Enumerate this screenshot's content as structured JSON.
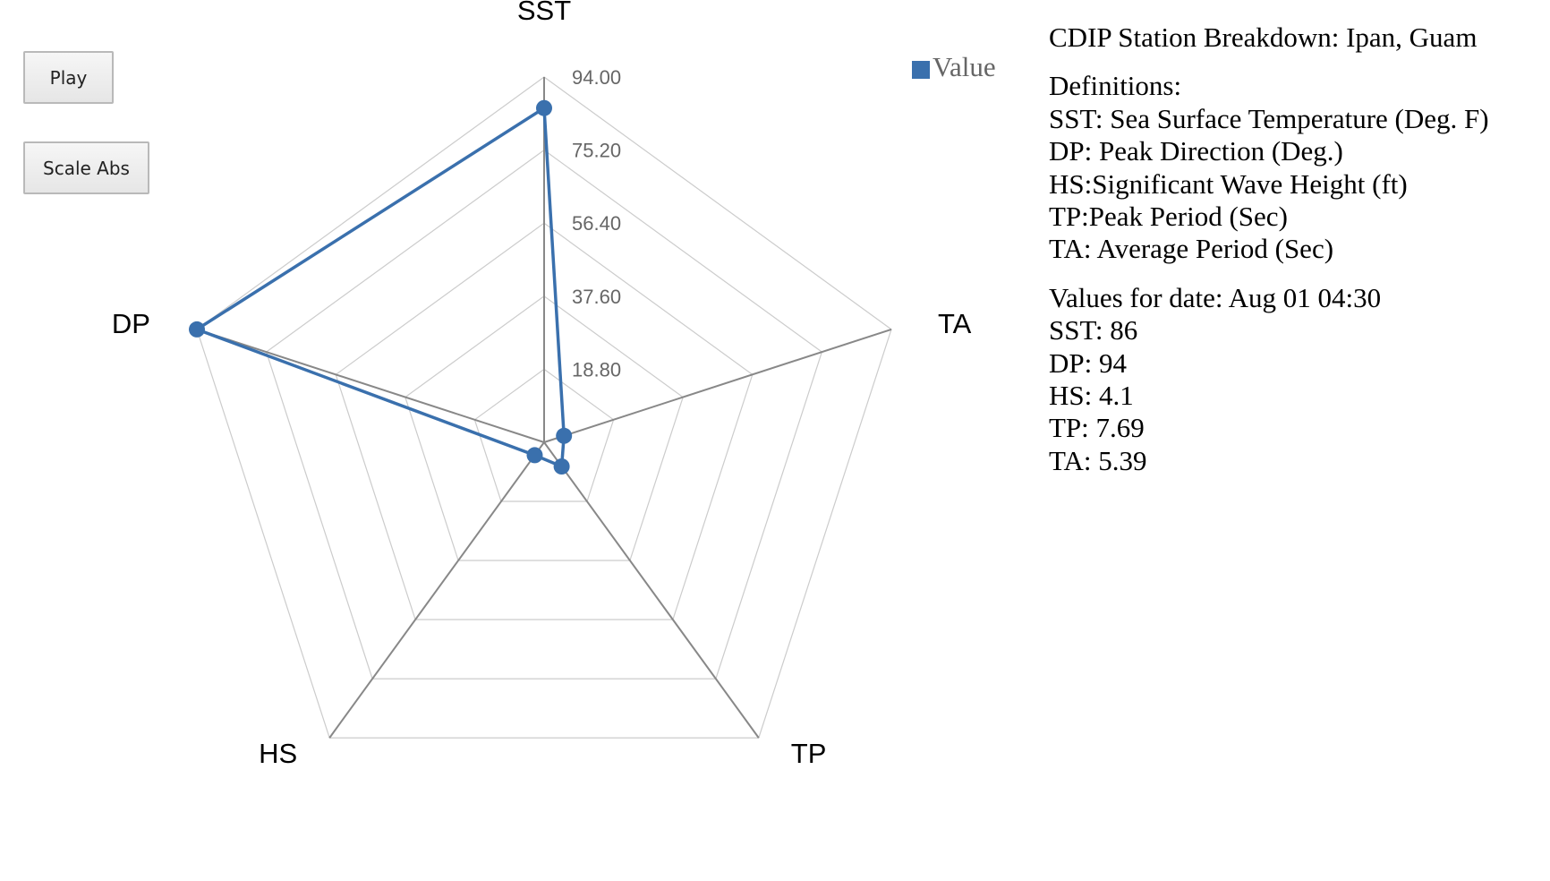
{
  "controls": {
    "play_label": "Play",
    "scale_label": "Scale Abs"
  },
  "info": {
    "title": "CDIP Station Breakdown: Ipan, Guam",
    "definitions_heading": "Definitions:",
    "definitions": [
      "SST: Sea Surface Temperature (Deg. F)",
      "DP: Peak Direction (Deg.)",
      "HS:Significant Wave Height (ft)",
      "TP:Peak Period (Sec)",
      "TA: Average Period (Sec)"
    ],
    "values_heading": "Values for date: Aug 01 04:30",
    "values_lines": [
      "SST: 86",
      "DP: 94",
      "HS: 4.1",
      "TP: 7.69",
      "TA: 5.39"
    ]
  },
  "chart_data": {
    "type": "radar",
    "axes": [
      "SST",
      "TA",
      "TP",
      "HS",
      "DP"
    ],
    "series": [
      {
        "name": "Value",
        "values": [
          86,
          5.39,
          7.69,
          4.1,
          94
        ],
        "color": "#3a70ad"
      }
    ],
    "tick_labels": [
      "18.80",
      "37.60",
      "56.40",
      "75.20",
      "94.00"
    ],
    "tick_values": [
      18.8,
      37.6,
      56.4,
      75.2,
      94.0
    ],
    "range": [
      0,
      94
    ],
    "grid": true,
    "legend_position": "top-right",
    "grid_color": "#cccccc",
    "axis_color": "#888888"
  }
}
